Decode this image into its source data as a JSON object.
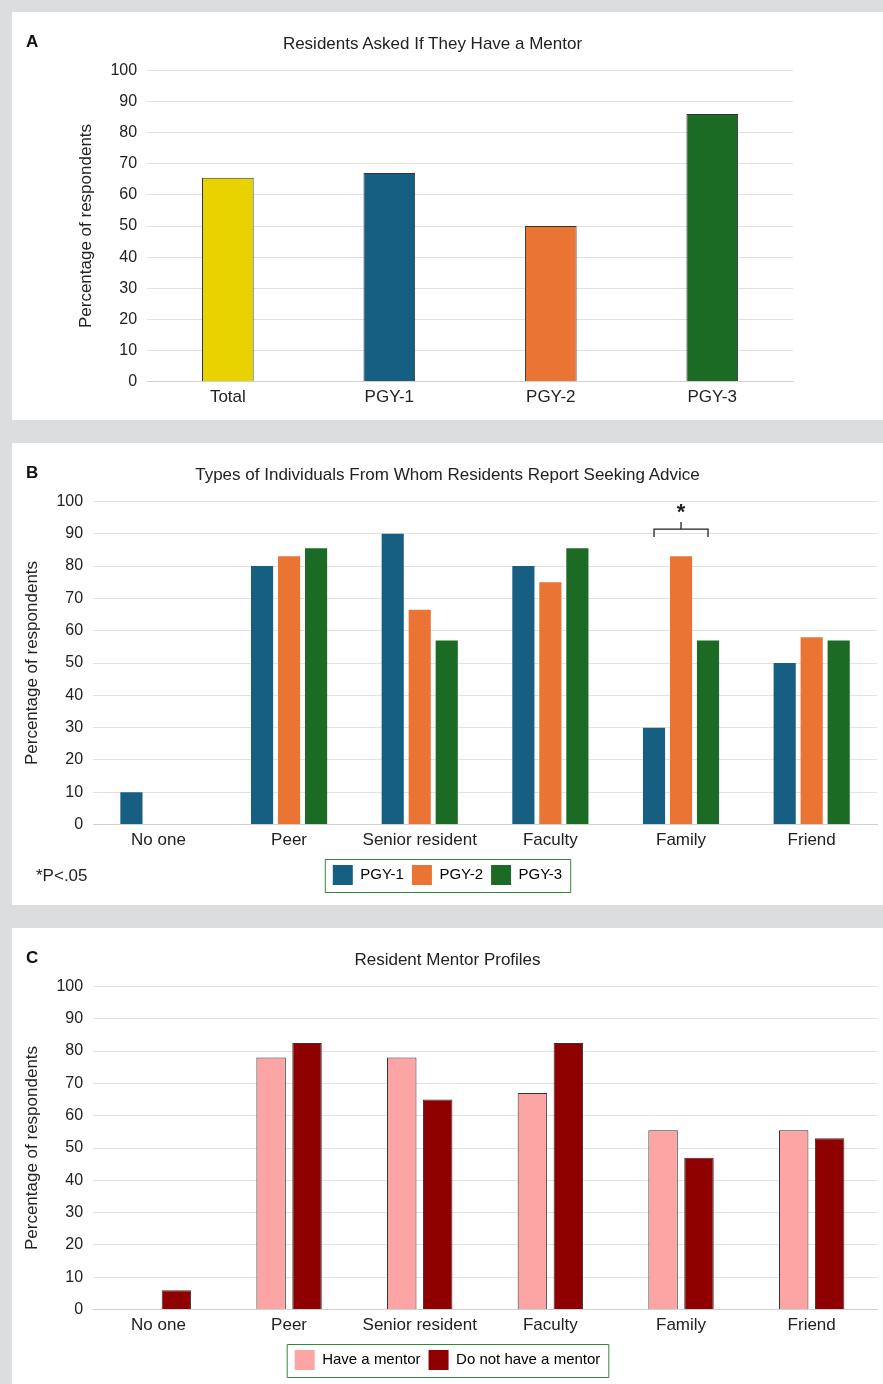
{
  "chart_data": [
    {
      "type": "bar",
      "title": "Residents Asked If They Have a Mentor",
      "ylabel": "Percentage of respondents",
      "categories": [
        "Total",
        "PGY-1",
        "PGY-2",
        "PGY-3"
      ],
      "values": [
        65.5,
        67,
        50,
        86
      ],
      "colors": [
        "#e8d300",
        "#175f82",
        "#e97434",
        "#1b6b25"
      ],
      "ylim": [
        0,
        100
      ],
      "yticks": [
        0,
        10,
        20,
        30,
        40,
        50,
        60,
        70,
        80,
        90,
        100
      ],
      "grid": "y",
      "annotations": [
        "A"
      ]
    },
    {
      "type": "bar",
      "title": "Types of Individuals From Whom Residents Report Seeking Advice",
      "ylabel": "Percentage of respondents",
      "categories": [
        "No one",
        "Peer",
        "Senior resident",
        "Faculty",
        "Family",
        "Friend"
      ],
      "series": [
        {
          "name": "PGY-1",
          "color": "#175f82",
          "values": [
            10,
            80,
            90,
            80,
            30,
            50
          ]
        },
        {
          "name": "PGY-2",
          "color": "#e97434",
          "values": [
            0,
            83,
            66.5,
            75,
            83,
            58
          ]
        },
        {
          "name": "PGY-3",
          "color": "#1b6b25",
          "values": [
            0,
            85.5,
            57,
            85.5,
            57,
            57
          ]
        }
      ],
      "ylim": [
        0,
        100
      ],
      "yticks": [
        0,
        10,
        20,
        30,
        40,
        50,
        60,
        70,
        80,
        90,
        100
      ],
      "grid": "y",
      "legend": "bottom",
      "annotations": [
        "B",
        "*P<.05",
        "*"
      ]
    },
    {
      "type": "bar",
      "title": "Resident Mentor Profiles",
      "ylabel": "Percentage of respondents",
      "categories": [
        "No one",
        "Peer",
        "Senior resident",
        "Faculty",
        "Family",
        "Friend"
      ],
      "series": [
        {
          "name": "Have a mentor",
          "color": "#fda4a4",
          "values": [
            0,
            78,
            78,
            67,
            55.5,
            55.5
          ]
        },
        {
          "name": "Do not have a mentor",
          "color": "#8f0000",
          "values": [
            6,
            82.5,
            65,
            82.5,
            47,
            53
          ]
        }
      ],
      "ylim": [
        0,
        100
      ],
      "yticks": [
        0,
        10,
        20,
        30,
        40,
        50,
        60,
        70,
        80,
        90,
        100
      ],
      "grid": "y",
      "legend": "bottom",
      "annotations": [
        "C"
      ]
    }
  ]
}
